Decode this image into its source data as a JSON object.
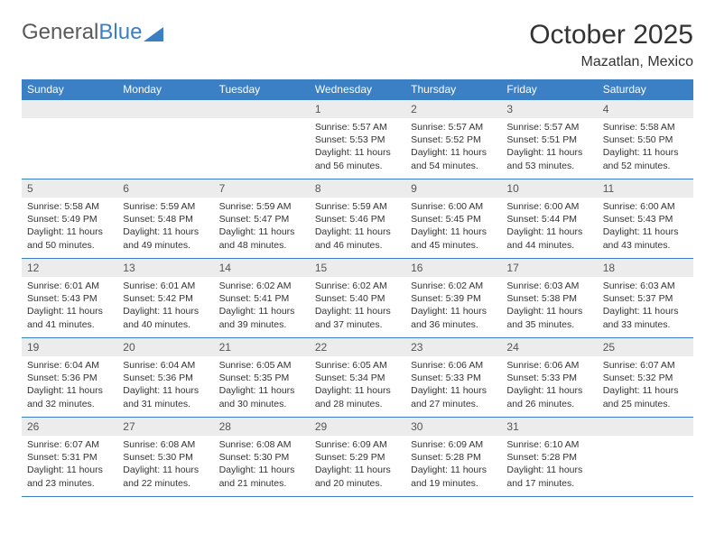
{
  "brand": {
    "part1": "General",
    "part2": "Blue"
  },
  "title": "October 2025",
  "location": "Mazatlan, Mexico",
  "colors": {
    "header_bg": "#3b7fc4",
    "header_text": "#ffffff",
    "daynum_bg": "#ececec",
    "daynum_text": "#555555",
    "body_text": "#333333",
    "rule": "#3b7fc4",
    "page_bg": "#ffffff"
  },
  "day_labels": [
    "Sunday",
    "Monday",
    "Tuesday",
    "Wednesday",
    "Thursday",
    "Friday",
    "Saturday"
  ],
  "weeks": [
    [
      {
        "n": "",
        "sr": "",
        "ss": "",
        "dl": ""
      },
      {
        "n": "",
        "sr": "",
        "ss": "",
        "dl": ""
      },
      {
        "n": "",
        "sr": "",
        "ss": "",
        "dl": ""
      },
      {
        "n": "1",
        "sr": "Sunrise: 5:57 AM",
        "ss": "Sunset: 5:53 PM",
        "dl": "Daylight: 11 hours and 56 minutes."
      },
      {
        "n": "2",
        "sr": "Sunrise: 5:57 AM",
        "ss": "Sunset: 5:52 PM",
        "dl": "Daylight: 11 hours and 54 minutes."
      },
      {
        "n": "3",
        "sr": "Sunrise: 5:57 AM",
        "ss": "Sunset: 5:51 PM",
        "dl": "Daylight: 11 hours and 53 minutes."
      },
      {
        "n": "4",
        "sr": "Sunrise: 5:58 AM",
        "ss": "Sunset: 5:50 PM",
        "dl": "Daylight: 11 hours and 52 minutes."
      }
    ],
    [
      {
        "n": "5",
        "sr": "Sunrise: 5:58 AM",
        "ss": "Sunset: 5:49 PM",
        "dl": "Daylight: 11 hours and 50 minutes."
      },
      {
        "n": "6",
        "sr": "Sunrise: 5:59 AM",
        "ss": "Sunset: 5:48 PM",
        "dl": "Daylight: 11 hours and 49 minutes."
      },
      {
        "n": "7",
        "sr": "Sunrise: 5:59 AM",
        "ss": "Sunset: 5:47 PM",
        "dl": "Daylight: 11 hours and 48 minutes."
      },
      {
        "n": "8",
        "sr": "Sunrise: 5:59 AM",
        "ss": "Sunset: 5:46 PM",
        "dl": "Daylight: 11 hours and 46 minutes."
      },
      {
        "n": "9",
        "sr": "Sunrise: 6:00 AM",
        "ss": "Sunset: 5:45 PM",
        "dl": "Daylight: 11 hours and 45 minutes."
      },
      {
        "n": "10",
        "sr": "Sunrise: 6:00 AM",
        "ss": "Sunset: 5:44 PM",
        "dl": "Daylight: 11 hours and 44 minutes."
      },
      {
        "n": "11",
        "sr": "Sunrise: 6:00 AM",
        "ss": "Sunset: 5:43 PM",
        "dl": "Daylight: 11 hours and 43 minutes."
      }
    ],
    [
      {
        "n": "12",
        "sr": "Sunrise: 6:01 AM",
        "ss": "Sunset: 5:43 PM",
        "dl": "Daylight: 11 hours and 41 minutes."
      },
      {
        "n": "13",
        "sr": "Sunrise: 6:01 AM",
        "ss": "Sunset: 5:42 PM",
        "dl": "Daylight: 11 hours and 40 minutes."
      },
      {
        "n": "14",
        "sr": "Sunrise: 6:02 AM",
        "ss": "Sunset: 5:41 PM",
        "dl": "Daylight: 11 hours and 39 minutes."
      },
      {
        "n": "15",
        "sr": "Sunrise: 6:02 AM",
        "ss": "Sunset: 5:40 PM",
        "dl": "Daylight: 11 hours and 37 minutes."
      },
      {
        "n": "16",
        "sr": "Sunrise: 6:02 AM",
        "ss": "Sunset: 5:39 PM",
        "dl": "Daylight: 11 hours and 36 minutes."
      },
      {
        "n": "17",
        "sr": "Sunrise: 6:03 AM",
        "ss": "Sunset: 5:38 PM",
        "dl": "Daylight: 11 hours and 35 minutes."
      },
      {
        "n": "18",
        "sr": "Sunrise: 6:03 AM",
        "ss": "Sunset: 5:37 PM",
        "dl": "Daylight: 11 hours and 33 minutes."
      }
    ],
    [
      {
        "n": "19",
        "sr": "Sunrise: 6:04 AM",
        "ss": "Sunset: 5:36 PM",
        "dl": "Daylight: 11 hours and 32 minutes."
      },
      {
        "n": "20",
        "sr": "Sunrise: 6:04 AM",
        "ss": "Sunset: 5:36 PM",
        "dl": "Daylight: 11 hours and 31 minutes."
      },
      {
        "n": "21",
        "sr": "Sunrise: 6:05 AM",
        "ss": "Sunset: 5:35 PM",
        "dl": "Daylight: 11 hours and 30 minutes."
      },
      {
        "n": "22",
        "sr": "Sunrise: 6:05 AM",
        "ss": "Sunset: 5:34 PM",
        "dl": "Daylight: 11 hours and 28 minutes."
      },
      {
        "n": "23",
        "sr": "Sunrise: 6:06 AM",
        "ss": "Sunset: 5:33 PM",
        "dl": "Daylight: 11 hours and 27 minutes."
      },
      {
        "n": "24",
        "sr": "Sunrise: 6:06 AM",
        "ss": "Sunset: 5:33 PM",
        "dl": "Daylight: 11 hours and 26 minutes."
      },
      {
        "n": "25",
        "sr": "Sunrise: 6:07 AM",
        "ss": "Sunset: 5:32 PM",
        "dl": "Daylight: 11 hours and 25 minutes."
      }
    ],
    [
      {
        "n": "26",
        "sr": "Sunrise: 6:07 AM",
        "ss": "Sunset: 5:31 PM",
        "dl": "Daylight: 11 hours and 23 minutes."
      },
      {
        "n": "27",
        "sr": "Sunrise: 6:08 AM",
        "ss": "Sunset: 5:30 PM",
        "dl": "Daylight: 11 hours and 22 minutes."
      },
      {
        "n": "28",
        "sr": "Sunrise: 6:08 AM",
        "ss": "Sunset: 5:30 PM",
        "dl": "Daylight: 11 hours and 21 minutes."
      },
      {
        "n": "29",
        "sr": "Sunrise: 6:09 AM",
        "ss": "Sunset: 5:29 PM",
        "dl": "Daylight: 11 hours and 20 minutes."
      },
      {
        "n": "30",
        "sr": "Sunrise: 6:09 AM",
        "ss": "Sunset: 5:28 PM",
        "dl": "Daylight: 11 hours and 19 minutes."
      },
      {
        "n": "31",
        "sr": "Sunrise: 6:10 AM",
        "ss": "Sunset: 5:28 PM",
        "dl": "Daylight: 11 hours and 17 minutes."
      },
      {
        "n": "",
        "sr": "",
        "ss": "",
        "dl": ""
      }
    ]
  ]
}
